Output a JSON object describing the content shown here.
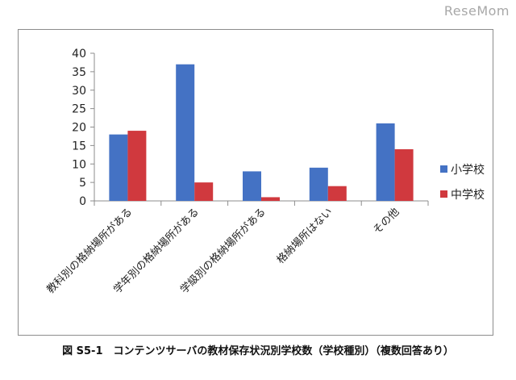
{
  "watermark": "ReseMom",
  "caption": "図 S5-1　コンテンツサーバの教材保存状況別学校数（学校種別）（複数回答あり）",
  "colors": {
    "series1": "#4472C4",
    "series2": "#D0393E",
    "axis": "#8c8c8c"
  },
  "chart_data": {
    "type": "bar",
    "categories": [
      "教科別の格納場所がある",
      "学年別の格納場所がある",
      "学級別の格納場所がある",
      "格納場所はない",
      "その他"
    ],
    "series": [
      {
        "name": "小学校",
        "values": [
          18,
          37,
          8,
          9,
          21
        ]
      },
      {
        "name": "中学校",
        "values": [
          19,
          5,
          1,
          4,
          14
        ]
      }
    ],
    "yticks": [
      0,
      5,
      10,
      15,
      20,
      25,
      30,
      35,
      40
    ],
    "ylim": [
      0,
      40
    ],
    "grid": false,
    "legend": "right"
  }
}
